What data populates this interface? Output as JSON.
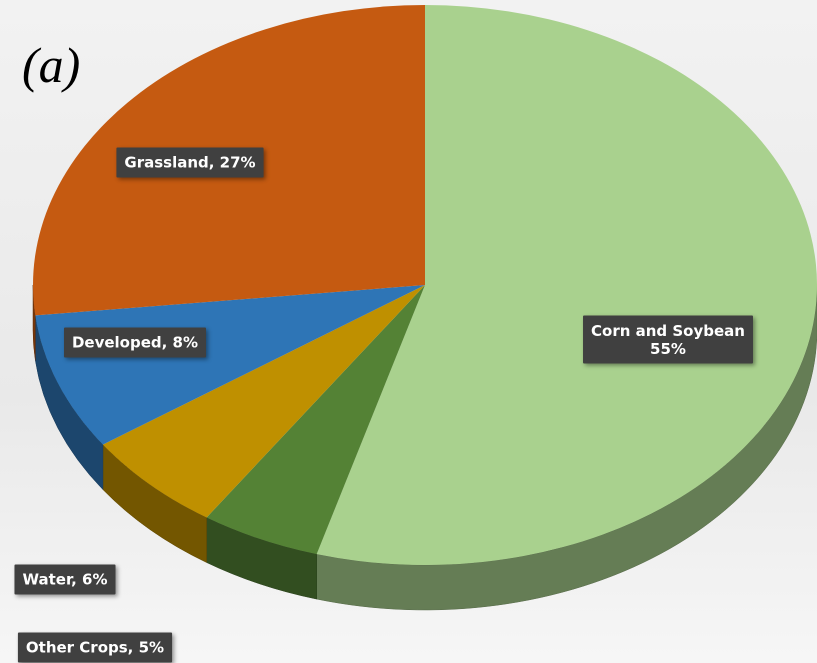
{
  "chart_data": {
    "type": "pie",
    "title": "(a)",
    "labels": [
      "Corn and Soybean\n55%",
      "Other Crops, 5%",
      "Water, 6%",
      "Developed, 8%",
      "Grassland, 27%"
    ],
    "values": [
      55,
      5,
      6,
      8,
      27
    ],
    "colors": [
      "#a9d18e",
      "#548235",
      "#bf9000",
      "#2e75b6",
      "#c55a11"
    ]
  }
}
